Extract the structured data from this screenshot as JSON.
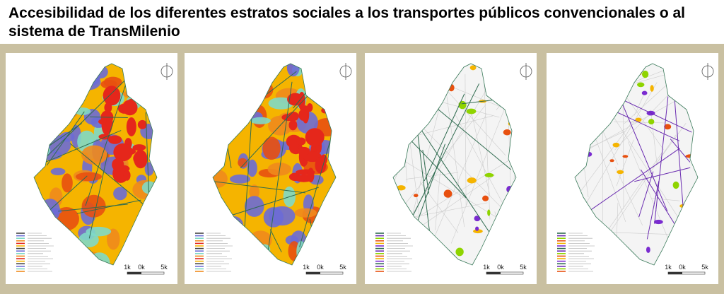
{
  "header": {
    "title": "Accesibilidad de los diferentes estratos sociales a los transportes públicos convencionales o al sistema de TransMilenio"
  },
  "maps": [
    {
      "scale_labels": [
        "1k",
        "0k",
        "5k"
      ]
    },
    {
      "scale_labels": [
        "1k",
        "0k",
        "5k"
      ]
    },
    {
      "scale_labels": [
        "1k",
        "0k",
        "5k"
      ]
    },
    {
      "scale_labels": [
        "1k",
        "0k",
        "5k"
      ]
    }
  ]
}
